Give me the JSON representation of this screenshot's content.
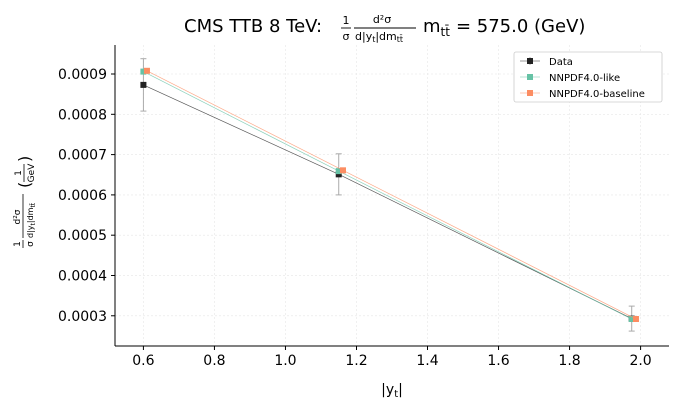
{
  "chart_data": {
    "type": "line",
    "title_prefix": "CMS TTB 8 TeV:",
    "title_fraction": {
      "numerator": "1",
      "denominator": "σ",
      "num2": "d²σ",
      "den2": "d|y",
      "den2_sub": "t",
      "den2_tail": "|dm",
      "den2_tail_sub": "tt̄"
    },
    "title_suffix": "m",
    "title_suffix_sub": "tt̄",
    "title_value": "= 575.0 (GeV)",
    "xlabel": "|y",
    "xlabel_sub": "t",
    "xlabel_close": "|",
    "ylabel_unit_num": "1",
    "ylabel_unit_den": "GeV",
    "xlim": [
      0.52,
      2.08
    ],
    "ylim": [
      0.000225,
      0.000972
    ],
    "xticks": [
      0.6,
      0.8,
      1.0,
      1.2,
      1.4,
      1.6,
      1.8,
      2.0
    ],
    "xtick_labels": [
      "0.6",
      "0.8",
      "1.0",
      "1.2",
      "1.4",
      "1.6",
      "1.8",
      "2.0"
    ],
    "yticks": [
      0.0003,
      0.0004,
      0.0005,
      0.0006,
      0.0007,
      0.0008,
      0.0009
    ],
    "ytick_labels": [
      "0.0003",
      "0.0004",
      "0.0005",
      "0.0006",
      "0.0007",
      "0.0008",
      "0.0009"
    ],
    "grid": true,
    "legend_position": "top-right",
    "series": [
      {
        "name": "Data",
        "color": "#222222",
        "x": [
          0.6,
          1.15,
          1.975
        ],
        "y": [
          0.000873,
          0.000651,
          0.000293
        ],
        "yerr": [
          6.5e-05,
          5.1e-05,
          3.1e-05
        ]
      },
      {
        "name": "NNPDF4.0-like",
        "color": "#66c2a5",
        "x": [
          0.6,
          1.15,
          1.975
        ],
        "y": [
          0.000906,
          0.000659,
          0.000292
        ]
      },
      {
        "name": "NNPDF4.0-baseline",
        "color": "#fc8d62",
        "x": [
          0.61,
          1.162,
          1.987
        ],
        "y": [
          0.000908,
          0.000661,
          0.000292
        ]
      }
    ]
  }
}
